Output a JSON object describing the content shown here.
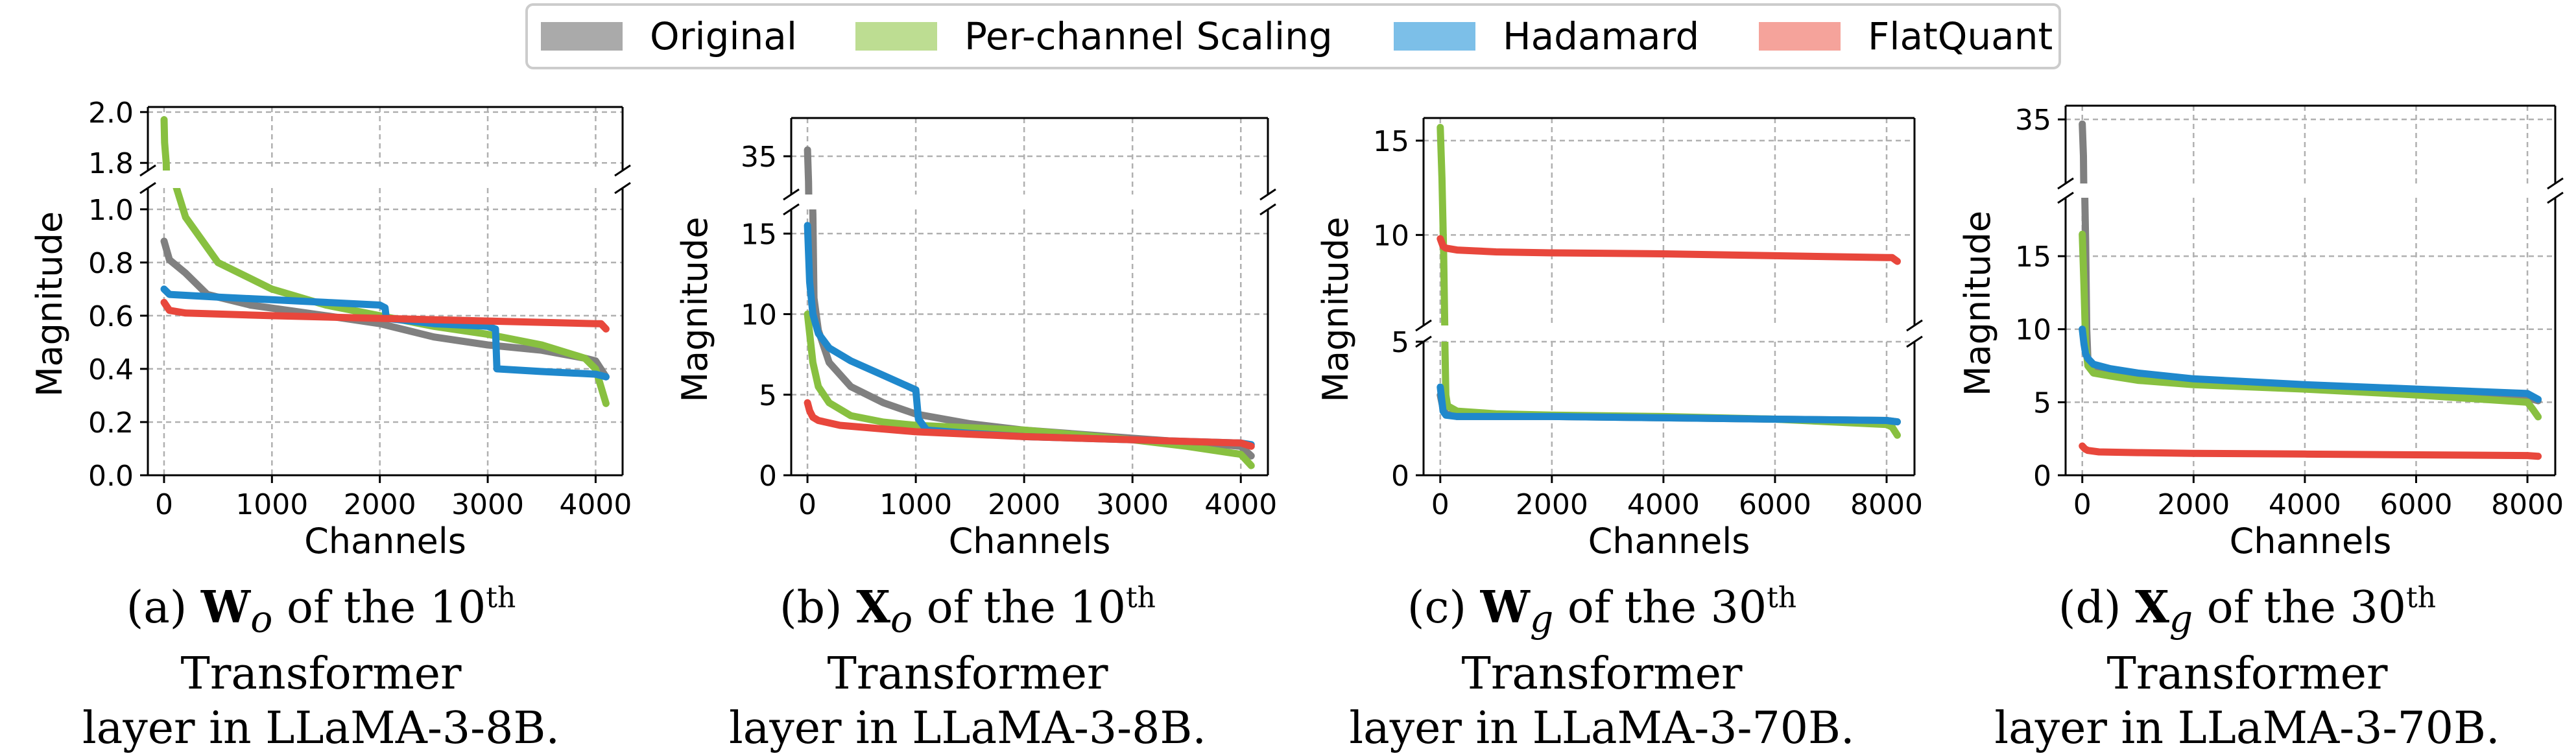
{
  "legend": [
    {
      "name": "Original",
      "color": "#aaaaaa"
    },
    {
      "name": "Per-channel Scaling",
      "color": "#bddd92"
    },
    {
      "name": "Hadamard",
      "color": "#7cbfe8"
    },
    {
      "name": "FlatQuant",
      "color": "#f5a39b"
    }
  ],
  "line_colors": {
    "Original": "#808080",
    "Per-channel Scaling": "#88c040",
    "Hadamard": "#1f88cc",
    "FlatQuant": "#e8473c"
  },
  "chart_data": [
    {
      "type": "line",
      "xlabel": "Channels",
      "ylabel": "Magnitude",
      "xlim": [
        -150,
        4250
      ],
      "xticks": [
        0,
        1000,
        2000,
        3000,
        4000
      ],
      "grid": true,
      "broken_y_axis": true,
      "upper": {
        "ylim": [
          1.77,
          2.02
        ],
        "yticks": [
          1.8,
          2.0
        ]
      },
      "lower": {
        "ylim": [
          0.0,
          1.08
        ],
        "yticks": [
          0.0,
          0.2,
          0.4,
          0.6,
          0.8,
          1.0
        ]
      },
      "series": [
        {
          "name": "Original",
          "x": [
            0,
            50,
            200,
            400,
            800,
            1500,
            2000,
            2500,
            3000,
            3500,
            3900,
            4000,
            4096
          ],
          "y": [
            0.88,
            0.81,
            0.76,
            0.68,
            0.64,
            0.6,
            0.57,
            0.52,
            0.49,
            0.47,
            0.44,
            0.43,
            0.37
          ]
        },
        {
          "name": "Per-channel Scaling",
          "x": [
            0,
            5,
            20,
            50,
            100,
            200,
            500,
            1000,
            1500,
            2000,
            2500,
            3000,
            3500,
            3900,
            4000,
            4096
          ],
          "y": [
            1.97,
            1.88,
            1.8,
            1.2,
            1.1,
            0.97,
            0.8,
            0.7,
            0.64,
            0.6,
            0.56,
            0.53,
            0.49,
            0.44,
            0.4,
            0.27
          ]
        },
        {
          "name": "Hadamard",
          "x": [
            0,
            50,
            500,
            1000,
            1500,
            2000,
            2048,
            2060,
            2500,
            3000,
            3072,
            3085,
            3500,
            4000,
            4096
          ],
          "y": [
            0.7,
            0.68,
            0.67,
            0.66,
            0.65,
            0.64,
            0.63,
            0.59,
            0.57,
            0.56,
            0.55,
            0.4,
            0.39,
            0.38,
            0.37
          ]
        },
        {
          "name": "FlatQuant",
          "x": [
            0,
            50,
            200,
            1000,
            2000,
            3000,
            4000,
            4050,
            4096
          ],
          "y": [
            0.65,
            0.62,
            0.61,
            0.6,
            0.59,
            0.58,
            0.57,
            0.57,
            0.55
          ]
        }
      ]
    },
    {
      "type": "line",
      "xlabel": "Channels",
      "ylabel": "Magnitude",
      "xlim": [
        -150,
        4250
      ],
      "xticks": [
        0,
        1000,
        2000,
        3000,
        4000
      ],
      "grid": true,
      "broken_y_axis": true,
      "upper": {
        "ylim": [
          32,
          38
        ],
        "yticks": [
          35
        ]
      },
      "lower": {
        "ylim": [
          0,
          16.5
        ],
        "yticks": [
          0,
          5,
          10,
          15
        ]
      },
      "series": [
        {
          "name": "Original",
          "x": [
            0,
            10,
            30,
            50,
            60,
            100,
            200,
            400,
            700,
            1000,
            1500,
            2000,
            3000,
            4000,
            4096
          ],
          "y": [
            35.5,
            33,
            20,
            16.2,
            11,
            9,
            7,
            5.5,
            4.5,
            3.8,
            3.2,
            2.8,
            2.3,
            1.8,
            1.2
          ]
        },
        {
          "name": "Per-channel Scaling",
          "x": [
            0,
            50,
            100,
            200,
            400,
            700,
            1000,
            2000,
            3000,
            3500,
            4000,
            4096
          ],
          "y": [
            10,
            7,
            5.5,
            4.5,
            3.7,
            3.3,
            3.1,
            2.8,
            2.2,
            1.8,
            1.3,
            0.6
          ]
        },
        {
          "name": "Hadamard",
          "x": [
            0,
            20,
            50,
            100,
            200,
            400,
            700,
            1000,
            1024,
            1100,
            1500,
            2000,
            3000,
            4000,
            4096
          ],
          "y": [
            15.5,
            12,
            10,
            8.8,
            7.9,
            7.1,
            6.2,
            5.3,
            3.5,
            2.8,
            2.6,
            2.4,
            2.2,
            2.0,
            1.9
          ]
        },
        {
          "name": "FlatQuant",
          "x": [
            0,
            20,
            50,
            100,
            300,
            1000,
            2000,
            3000,
            4000,
            4096
          ],
          "y": [
            4.5,
            4.0,
            3.6,
            3.4,
            3.1,
            2.7,
            2.4,
            2.2,
            2.0,
            1.8
          ]
        }
      ]
    },
    {
      "type": "line",
      "xlabel": "Channels",
      "ylabel": "Magnitude",
      "xlim": [
        -300,
        8500
      ],
      "xticks": [
        0,
        2000,
        4000,
        6000,
        8000
      ],
      "grid": true,
      "broken_y_axis": true,
      "upper": {
        "ylim": [
          5.2,
          16.2
        ],
        "yticks": [
          5,
          10,
          15
        ]
      },
      "lower": {
        "ylim": [
          0,
          5
        ],
        "yticks": [
          0,
          5
        ]
      },
      "series": [
        {
          "name": "Original",
          "x": [
            0,
            50,
            100,
            300,
            1000,
            2000,
            4000,
            6000,
            8000,
            8192
          ],
          "y": [
            3.0,
            2.5,
            2.3,
            2.2,
            2.2,
            2.2,
            2.15,
            2.1,
            2.05,
            2.0
          ]
        },
        {
          "name": "Per-channel Scaling",
          "x": [
            0,
            30,
            60,
            80,
            100,
            130,
            300,
            1000,
            2000,
            4000,
            6000,
            8000,
            8100,
            8192
          ],
          "y": [
            15.7,
            13,
            9,
            5.2,
            3.0,
            2.6,
            2.4,
            2.3,
            2.25,
            2.2,
            2.1,
            1.9,
            1.8,
            1.5
          ]
        },
        {
          "name": "Hadamard",
          "x": [
            0,
            50,
            100,
            300,
            1000,
            2000,
            4000,
            6000,
            8000,
            8192
          ],
          "y": [
            3.3,
            2.4,
            2.25,
            2.2,
            2.2,
            2.2,
            2.15,
            2.1,
            2.05,
            2.0
          ]
        },
        {
          "name": "FlatQuant",
          "x": [
            0,
            50,
            100,
            300,
            1000,
            2000,
            4000,
            6000,
            8000,
            8100,
            8192
          ],
          "y": [
            9.8,
            9.4,
            9.3,
            9.2,
            9.1,
            9.05,
            9.0,
            8.9,
            8.8,
            8.8,
            8.6
          ]
        }
      ]
    },
    {
      "type": "line",
      "xlabel": "Channels",
      "ylabel": "Magnitude",
      "xlim": [
        -300,
        8500
      ],
      "xticks": [
        0,
        2000,
        4000,
        6000,
        8000
      ],
      "grid": true,
      "broken_y_axis": true,
      "upper": {
        "ylim": [
          28,
          36.5
        ],
        "yticks": [
          35
        ]
      },
      "lower": {
        "ylim": [
          0,
          19
        ],
        "yticks": [
          0,
          5,
          10,
          15
        ]
      },
      "series": [
        {
          "name": "Original",
          "x": [
            0,
            20,
            40,
            60,
            80,
            100,
            200,
            500,
            1000,
            2000,
            4000,
            6000,
            8000,
            8192
          ],
          "y": [
            34.5,
            31,
            20,
            16,
            10,
            8.0,
            7.2,
            6.9,
            6.6,
            6.3,
            6.0,
            5.6,
            5.3,
            5.1
          ]
        },
        {
          "name": "Per-channel Scaling",
          "x": [
            0,
            30,
            60,
            100,
            200,
            500,
            1000,
            2000,
            4000,
            6000,
            8000,
            8100,
            8192
          ],
          "y": [
            16.5,
            13,
            9,
            7.5,
            7.0,
            6.8,
            6.5,
            6.2,
            5.9,
            5.5,
            5.0,
            4.5,
            4.0
          ]
        },
        {
          "name": "Hadamard",
          "x": [
            0,
            30,
            60,
            100,
            200,
            500,
            1000,
            2000,
            4000,
            6000,
            8000,
            8192
          ],
          "y": [
            10,
            9,
            8.3,
            8.0,
            7.6,
            7.3,
            7.0,
            6.6,
            6.2,
            5.9,
            5.6,
            5.2
          ]
        },
        {
          "name": "FlatQuant",
          "x": [
            0,
            50,
            100,
            300,
            1000,
            2000,
            4000,
            6000,
            8000,
            8192
          ],
          "y": [
            2.0,
            1.8,
            1.7,
            1.6,
            1.55,
            1.5,
            1.45,
            1.4,
            1.35,
            1.3
          ]
        }
      ]
    }
  ],
  "captions": [
    {
      "label": "(a)",
      "sym": "W",
      "sub": "o",
      "pre": " of the 10",
      "sup": "th",
      "post": " Transformer",
      "line2": "layer in LLaMA-3-8B."
    },
    {
      "label": "(b)",
      "sym": "X",
      "sub": "o",
      "pre": " of the 10",
      "sup": "th",
      "post": " Transformer",
      "line2": "layer in LLaMA-3-8B."
    },
    {
      "label": "(c)",
      "sym": "W",
      "sub": "g",
      "pre": " of the 30",
      "sup": "th",
      "post": " Transformer",
      "line2": "layer in LLaMA-3-70B."
    },
    {
      "label": "(d)",
      "sym": "X",
      "sub": "g",
      "pre": " of the 30",
      "sup": "th",
      "post": " Transformer",
      "line2": "layer in LLaMA-3-70B."
    }
  ]
}
